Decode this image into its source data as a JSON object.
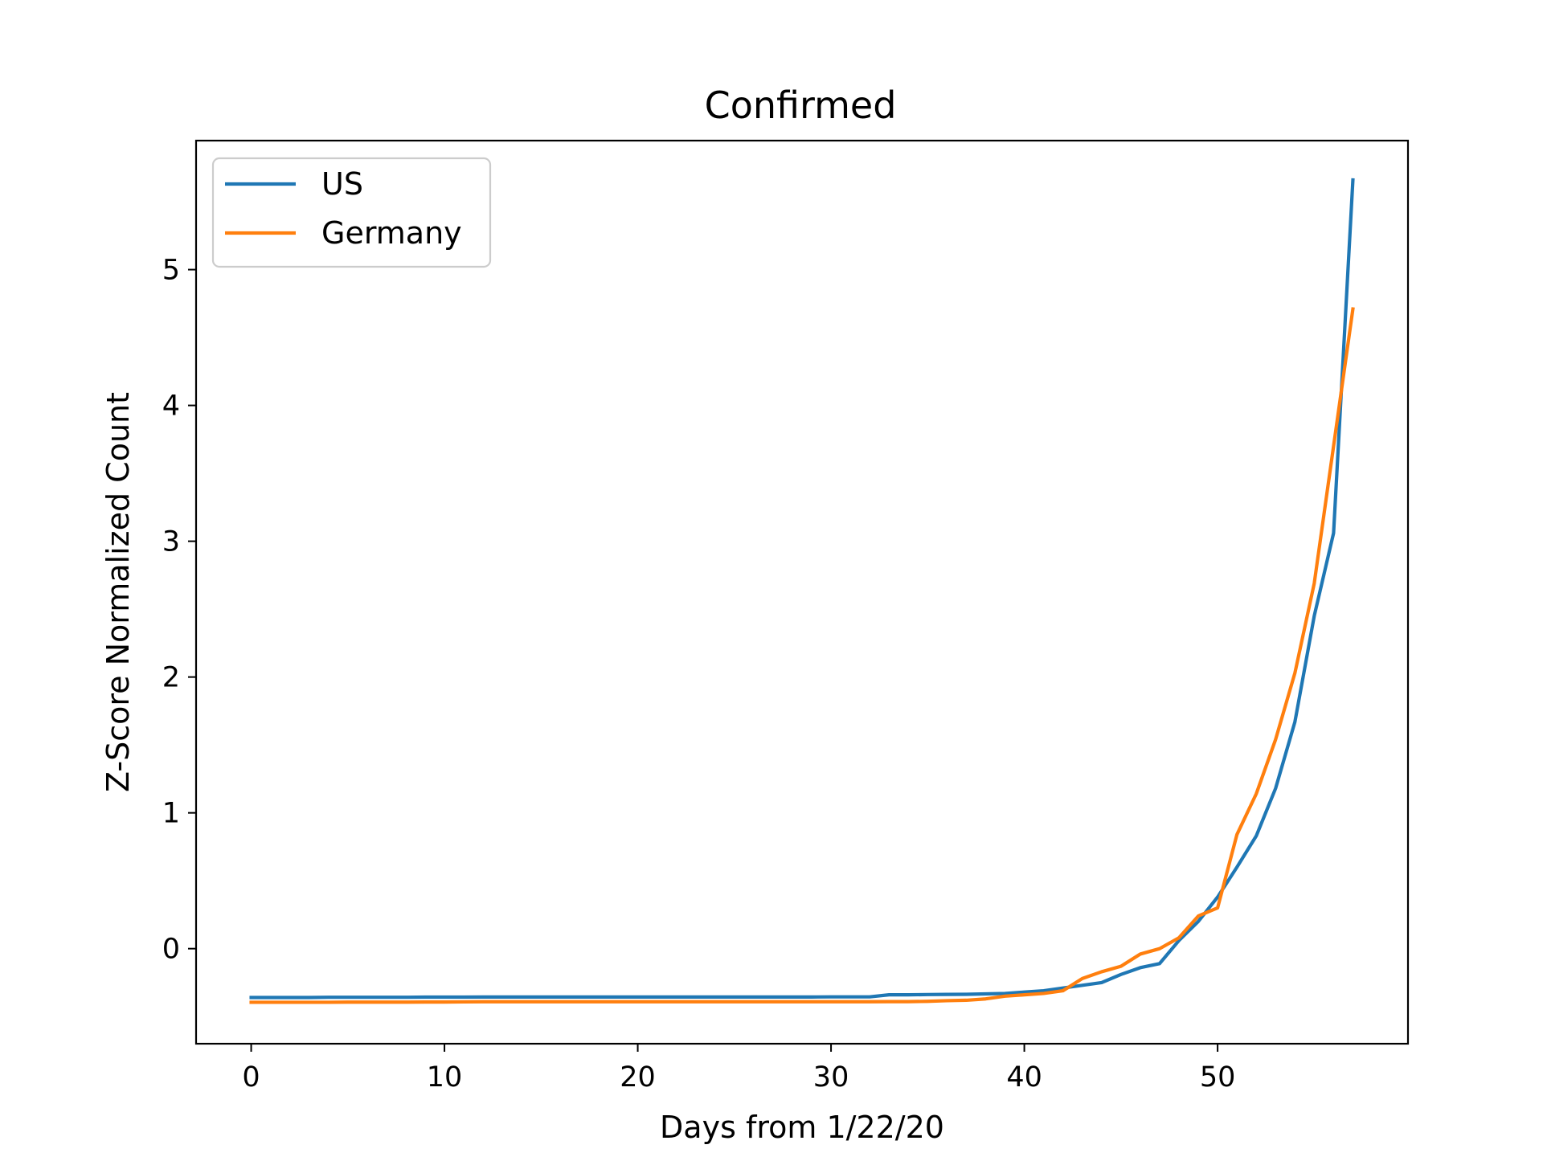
{
  "chart_data": {
    "type": "line",
    "title": "Confirmed",
    "xlabel": "Days from 1/22/20",
    "ylabel": "Z-Score Normalized Count",
    "xlim": [
      -2.85,
      59.85
    ],
    "ylim": [
      -0.7,
      5.95
    ],
    "xticks": [
      0,
      10,
      20,
      30,
      40,
      50
    ],
    "yticks": [
      0,
      1,
      2,
      3,
      4,
      5
    ],
    "grid": false,
    "legend_position": "upper-left",
    "x": [
      0,
      1,
      2,
      3,
      4,
      5,
      6,
      7,
      8,
      9,
      10,
      11,
      12,
      13,
      14,
      15,
      16,
      17,
      18,
      19,
      20,
      21,
      22,
      23,
      24,
      25,
      26,
      27,
      28,
      29,
      30,
      31,
      32,
      33,
      34,
      35,
      36,
      37,
      38,
      39,
      40,
      41,
      42,
      43,
      44,
      45,
      46,
      47,
      48,
      49,
      50,
      51,
      52,
      53,
      54,
      55,
      56,
      57
    ],
    "series": [
      {
        "name": "US",
        "color": "#1f77b4",
        "values": [
          -0.36,
          -0.36,
          -0.36,
          -0.36,
          -0.358,
          -0.358,
          -0.358,
          -0.358,
          -0.358,
          -0.357,
          -0.357,
          -0.357,
          -0.356,
          -0.356,
          -0.356,
          -0.356,
          -0.356,
          -0.356,
          -0.356,
          -0.356,
          -0.356,
          -0.356,
          -0.356,
          -0.356,
          -0.356,
          -0.356,
          -0.356,
          -0.356,
          -0.356,
          -0.356,
          -0.355,
          -0.355,
          -0.355,
          -0.34,
          -0.34,
          -0.338,
          -0.337,
          -0.336,
          -0.333,
          -0.33,
          -0.32,
          -0.31,
          -0.29,
          -0.27,
          -0.25,
          -0.19,
          -0.14,
          -0.11,
          0.06,
          0.2,
          0.38,
          0.6,
          0.83,
          1.18,
          1.67,
          2.45,
          3.06,
          5.66
        ]
      },
      {
        "name": "Germany",
        "color": "#ff7f0e",
        "values": [
          -0.395,
          -0.395,
          -0.395,
          -0.395,
          -0.395,
          -0.394,
          -0.394,
          -0.394,
          -0.394,
          -0.393,
          -0.393,
          -0.392,
          -0.391,
          -0.391,
          -0.391,
          -0.391,
          -0.391,
          -0.391,
          -0.391,
          -0.391,
          -0.391,
          -0.391,
          -0.391,
          -0.391,
          -0.391,
          -0.391,
          -0.391,
          -0.391,
          -0.391,
          -0.391,
          -0.391,
          -0.391,
          -0.391,
          -0.39,
          -0.39,
          -0.388,
          -0.383,
          -0.38,
          -0.37,
          -0.35,
          -0.34,
          -0.33,
          -0.31,
          -0.22,
          -0.17,
          -0.13,
          -0.04,
          0.0,
          0.08,
          0.24,
          0.3,
          0.84,
          1.14,
          1.54,
          2.03,
          2.69,
          3.7,
          4.71
        ]
      }
    ]
  }
}
